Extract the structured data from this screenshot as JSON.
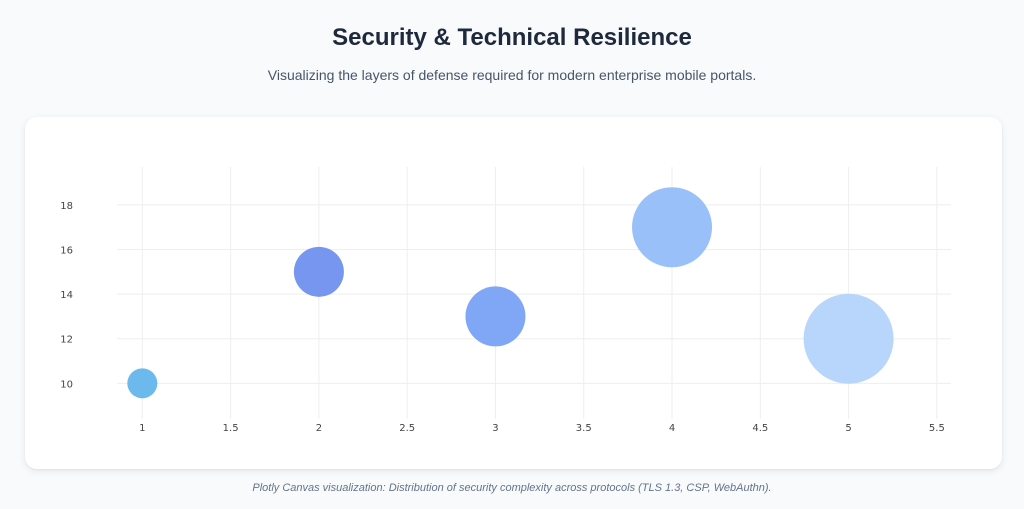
{
  "header": {
    "title": "Security & Technical Resilience",
    "subtitle": "Visualizing the layers of defense required for modern enterprise mobile portals."
  },
  "caption": "Plotly Canvas visualization: Distribution of security complexity across protocols (TLS 1.3, CSP, WebAuthn).",
  "chart_data": {
    "type": "scatter",
    "mode": "bubble",
    "x": [
      1,
      2,
      3,
      4,
      5
    ],
    "y": [
      10,
      15,
      13,
      17,
      12
    ],
    "bubble_size": [
      15,
      25,
      30,
      40,
      45
    ],
    "colors": [
      "#60b3ec",
      "#6b8def",
      "#75a0f4",
      "#91bbfa",
      "#b2d3fc"
    ],
    "title": "",
    "xlabel": "",
    "ylabel": "",
    "xlim": [
      0.63,
      5.58
    ],
    "ylim": [
      8.4,
      19.7
    ],
    "xticks": [
      1,
      1.5,
      2,
      2.5,
      3,
      3.5,
      4,
      4.5,
      5,
      5.5
    ],
    "xtick_labels": [
      "1",
      "1.5",
      "2",
      "2.5",
      "3",
      "3.5",
      "4",
      "4.5",
      "5",
      "5.5"
    ],
    "yticks": [
      10,
      12,
      14,
      16,
      18
    ],
    "ytick_labels": [
      "10",
      "12",
      "14",
      "16",
      "18"
    ],
    "grid": true,
    "legend": "none"
  }
}
